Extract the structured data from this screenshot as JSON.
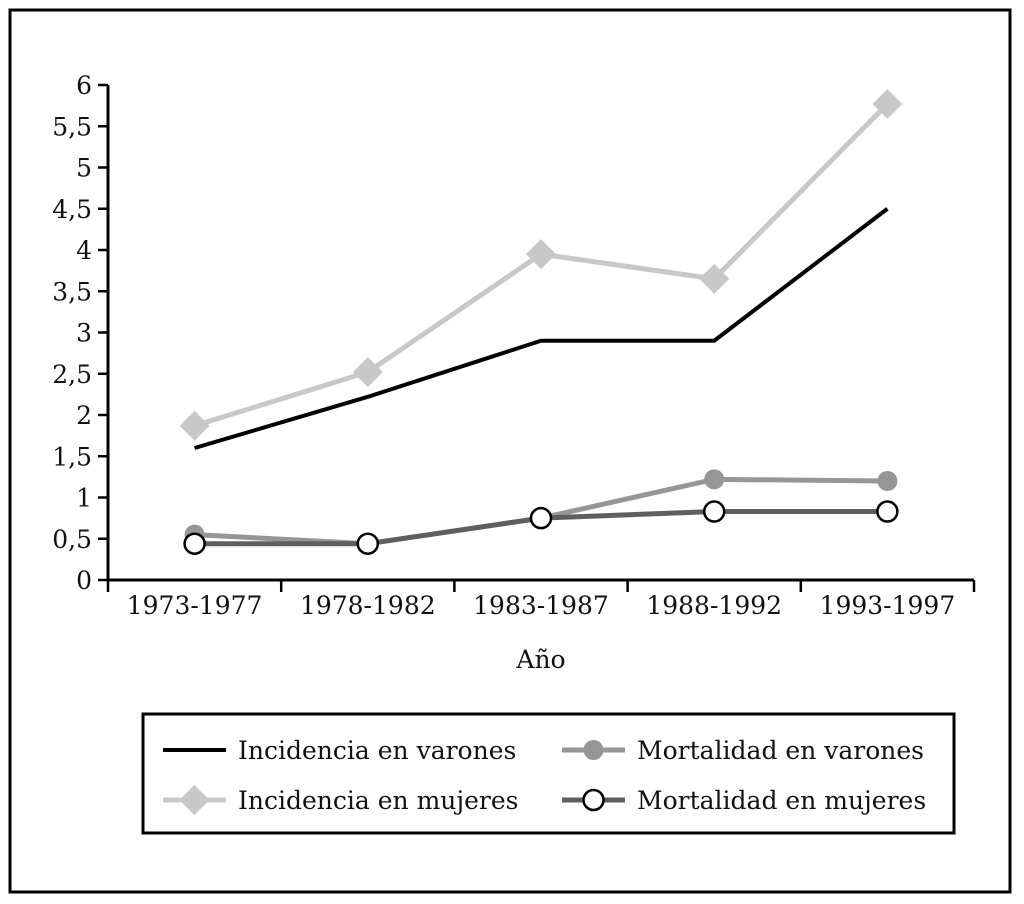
{
  "chart_data": {
    "type": "line",
    "xlabel": "Año",
    "ylabel": "",
    "ylim": [
      0,
      6
    ],
    "yticks": [
      "0",
      "0,5",
      "1",
      "1,5",
      "2",
      "2,5",
      "3",
      "3,5",
      "4",
      "4,5",
      "5",
      "5,5",
      "6"
    ],
    "categories": [
      "1973-1977",
      "1978-1982",
      "1983-1987",
      "1988-1992",
      "1993-1997"
    ],
    "legend_position": "bottom",
    "series": [
      {
        "name": "Incidencia en varones",
        "values": [
          1.6,
          2.22,
          2.9,
          2.9,
          4.5
        ],
        "color": "#000000",
        "marker": "none"
      },
      {
        "name": "Incidencia en mujeres",
        "values": [
          1.87,
          2.52,
          3.95,
          3.65,
          5.77
        ],
        "color": "#c8c8c8",
        "marker": "diamond"
      },
      {
        "name": "Mortalidad en varones",
        "values": [
          0.55,
          0.44,
          0.75,
          1.22,
          1.2
        ],
        "color": "#969696",
        "marker": "circle-filled"
      },
      {
        "name": "Mortalidad en mujeres",
        "values": [
          0.44,
          0.44,
          0.75,
          0.83,
          0.83
        ],
        "color": "#5f5f5f",
        "marker": "circle-open"
      }
    ]
  }
}
